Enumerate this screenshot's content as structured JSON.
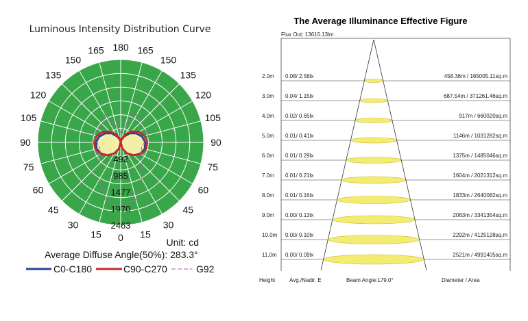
{
  "chart_data": [
    {
      "type": "polar",
      "title": "Luminous Intensity Distribution Curve",
      "angle_labels_left": [
        "180",
        "165",
        "150",
        "135",
        "120",
        "105",
        "90",
        "75",
        "60",
        "45",
        "30",
        "15",
        "0"
      ],
      "angle_labels_right": [
        "165",
        "150",
        "135",
        "120",
        "105",
        "90",
        "75",
        "60",
        "45",
        "30",
        "15"
      ],
      "angle_values": [
        0,
        15,
        30,
        45,
        60,
        75,
        90,
        105,
        120,
        135,
        150,
        165,
        180
      ],
      "radial_ticks": [
        "492",
        "985",
        "1477",
        "1970",
        "2463"
      ],
      "rmax": 2463,
      "unit": "Unit: cd",
      "average_angle": "Average Diffuse Angle(50%): 283.3°",
      "series": [
        {
          "name": "C0-C180",
          "color": "#2a3f9a",
          "angles": [
            0,
            15,
            30,
            45,
            60,
            75,
            90,
            105,
            120,
            135,
            150,
            165,
            180
          ],
          "values": [
            0,
            195,
            375,
            540,
            670,
            740,
            730,
            660,
            535,
            380,
            200,
            70,
            0
          ]
        },
        {
          "name": "C90-C270",
          "color": "#c62828",
          "angles": [
            0,
            15,
            30,
            45,
            60,
            75,
            90,
            105,
            120,
            135,
            150,
            165,
            180
          ],
          "values": [
            0,
            195,
            380,
            545,
            690,
            775,
            790,
            735,
            620,
            460,
            280,
            110,
            0
          ]
        },
        {
          "name": "G92",
          "color": "#b060b0",
          "style": "dashed",
          "angles": [
            0,
            15,
            30,
            45,
            60,
            75,
            90,
            105,
            120,
            135,
            150,
            165,
            180
          ],
          "values": [
            1930,
            1750,
            1250,
            900,
            700,
            640,
            700,
            850,
            800,
            780,
            950,
            500,
            300
          ]
        }
      ]
    },
    {
      "type": "table",
      "title": "The Average Illuminance Effective Figure",
      "flux": "Flux Out: 13615.13lm",
      "columns": [
        "Height",
        "Avg./Nadir. E",
        "Beam Angle:179.0°",
        "Diameter / Area"
      ],
      "rows": [
        {
          "height": "2.0m",
          "lux": "0.08/ 2.58lx",
          "diameter": "458.36m / 165005.11sq.m"
        },
        {
          "height": "3.0m",
          "lux": "0.04/ 1.15lx",
          "diameter": "687.54m / 371261.46sq.m"
        },
        {
          "height": "4.0m",
          "lux": "0.02/ 0.65lx",
          "diameter": "917m / 660020sq.m"
        },
        {
          "height": "5.0m",
          "lux": "0.01/ 0.41lx",
          "diameter": "1146m / 1031282sq.m"
        },
        {
          "height": "6.0m",
          "lux": "0.01/ 0.29lx",
          "diameter": "1375m / 1485046sq.m"
        },
        {
          "height": "7.0m",
          "lux": "0.01/ 0.21lx",
          "diameter": "1604m / 2021312sq.m"
        },
        {
          "height": "8.0m",
          "lux": "0.01/ 0.16lx",
          "diameter": "1833m / 2640082sq.m"
        },
        {
          "height": "9.0m",
          "lux": "0.00/ 0.13lx",
          "diameter": "2063m / 3341354sq.m"
        },
        {
          "height": "10.0m",
          "lux": "0.00/ 0.10lx",
          "diameter": "2292m / 4125128sq.m"
        },
        {
          "height": "11.0m",
          "lux": "0.00/ 0.09lx",
          "diameter": "2521m / 4991405sq.m"
        }
      ]
    }
  ],
  "colors": {
    "disc": "#3aa64a",
    "grid": "#ffffff",
    "fill": "#f6f0a8",
    "ellipse_fill": "#f4ec72",
    "ellipse_stroke": "#c8b82a"
  }
}
